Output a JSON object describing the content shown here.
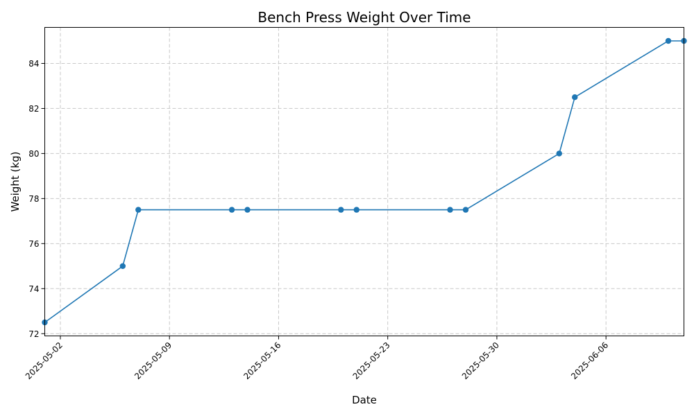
{
  "chart_data": {
    "type": "line",
    "title": "Bench Press Weight Over Time",
    "xlabel": "Date",
    "ylabel": "Weight (kg)",
    "x": [
      "2025-05-01",
      "2025-05-06",
      "2025-05-07",
      "2025-05-13",
      "2025-05-14",
      "2025-05-20",
      "2025-05-21",
      "2025-05-27",
      "2025-05-28",
      "2025-06-03",
      "2025-06-04",
      "2025-06-10",
      "2025-06-11"
    ],
    "series": [
      {
        "values": [
          72.5,
          75.0,
          77.5,
          77.5,
          77.5,
          77.5,
          77.5,
          77.5,
          77.5,
          80.0,
          82.5,
          85.0,
          85.0
        ],
        "color": "#1f77b4",
        "marker": "circle"
      }
    ],
    "xlim": [
      "2025-05-01",
      "2025-06-11"
    ],
    "ylim": [
      71.9,
      85.6
    ],
    "x_ticks": [
      "2025-05-02",
      "2025-05-09",
      "2025-05-16",
      "2025-05-23",
      "2025-05-30",
      "2025-06-06"
    ],
    "y_ticks": [
      72,
      74,
      76,
      78,
      80,
      82,
      84
    ],
    "grid": true,
    "grid_style": "dashed",
    "legend": false
  }
}
